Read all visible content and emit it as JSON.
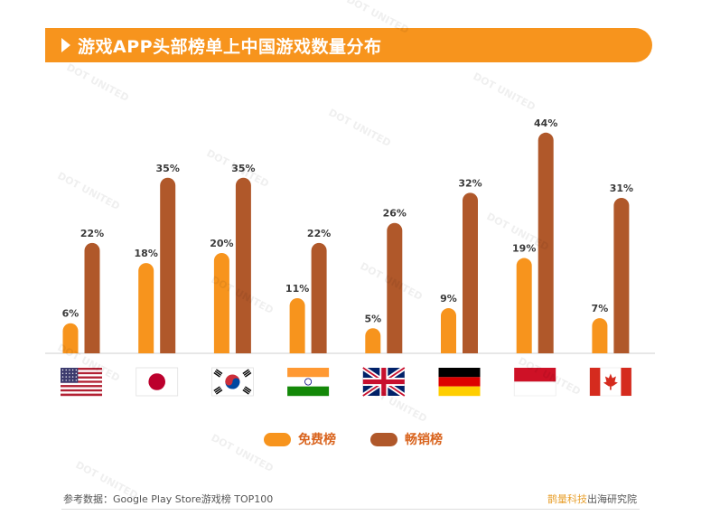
{
  "title": "游戏APP头部榜单上中国游戏数量分布",
  "chart_data": {
    "type": "bar",
    "categories": [
      "美国",
      "日本",
      "韩国",
      "印度",
      "英国",
      "德国",
      "印度尼西亚",
      "加拿大"
    ],
    "series": [
      {
        "name": "免费榜",
        "values": [
          6,
          18,
          20,
          11,
          5,
          9,
          19,
          7
        ],
        "labels": [
          "6%",
          "18%",
          "20%",
          "11%",
          "5%",
          "9%",
          "19%",
          "7%"
        ],
        "color": "#f7941d"
      },
      {
        "name": "畅销榜",
        "values": [
          22,
          35,
          35,
          22,
          26,
          32,
          44,
          31
        ],
        "labels": [
          "22%",
          "35%",
          "35%",
          "22%",
          "26%",
          "32%",
          "44%",
          "31%"
        ],
        "color": "#b0582a"
      }
    ],
    "ylim": [
      0,
      50
    ],
    "grid": false,
    "legend_placement": "bottom-center",
    "flag_icons": [
      "us-flag-icon",
      "jp-flag-icon",
      "kr-flag-icon",
      "in-flag-icon",
      "gb-flag-icon",
      "de-flag-icon",
      "id-flag-icon",
      "ca-flag-icon"
    ]
  },
  "legend": {
    "free": "免费榜",
    "grossing": "畅销榜"
  },
  "footer": {
    "source": "参考数据：Google Play Store游戏榜 TOP100",
    "brand_a": "鹊量科技",
    "brand_b": "出海研究院"
  },
  "watermark": "DOT UNITED",
  "colors": {
    "accent": "#f7941d",
    "dark": "#b0582a",
    "label": "#3a3a3a"
  }
}
